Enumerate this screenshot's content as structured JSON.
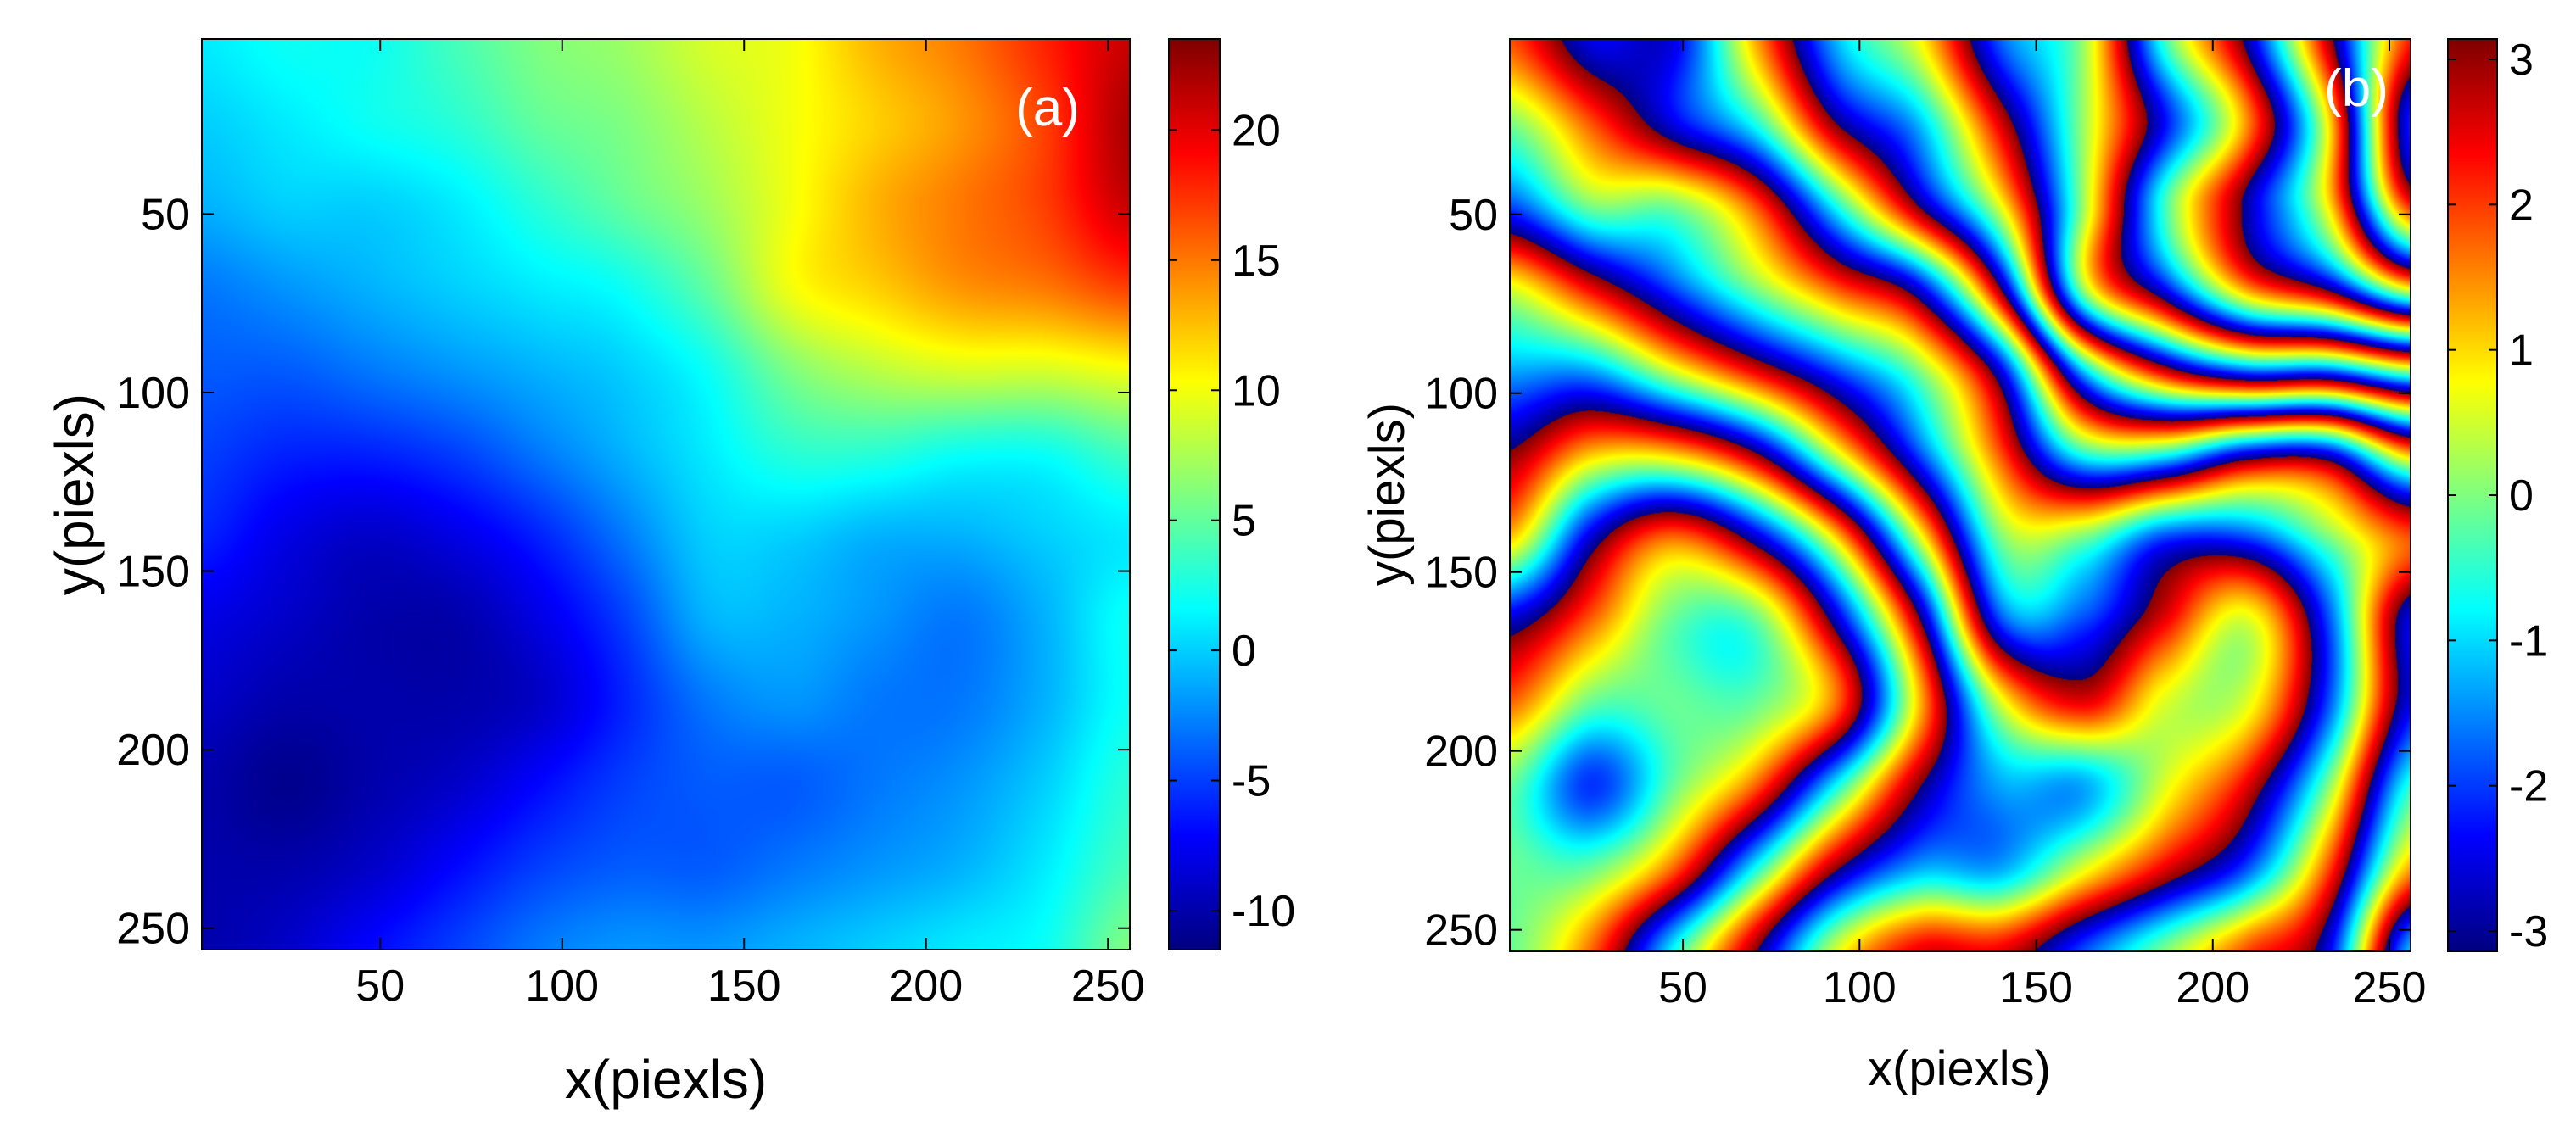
{
  "chart_data": [
    {
      "type": "heatmap",
      "panel_label": "(a)",
      "xlabel": "x(piexls)",
      "ylabel": "y(piexls)",
      "xlim": [
        1,
        256
      ],
      "ylim": [
        1,
        256
      ],
      "y_inverted": true,
      "xticks": [
        "50",
        "100",
        "150",
        "200",
        "250"
      ],
      "yticks": [
        "50",
        "100",
        "150",
        "200",
        "250"
      ],
      "colormap": "jet",
      "color_range": [
        -11.5,
        23.5
      ],
      "colorbar_ticks": [
        "-10",
        "-5",
        "0",
        "5",
        "10",
        "15",
        "20"
      ],
      "grid": false,
      "grid_values": [
        [
          1,
          2,
          2,
          4,
          6,
          7,
          9,
          10,
          13,
          15,
          18,
          21
        ],
        [
          0,
          1,
          2,
          3,
          5,
          6,
          8,
          10,
          12,
          14,
          17,
          22
        ],
        [
          -1,
          0,
          0,
          1,
          3,
          5,
          7,
          10,
          13,
          15,
          17,
          21
        ],
        [
          -3,
          -2,
          -1,
          0,
          1,
          2,
          5,
          10,
          12,
          14,
          15,
          17
        ],
        [
          -4,
          -4,
          -3,
          -2,
          -1,
          0,
          2,
          6,
          8,
          9,
          9,
          10
        ],
        [
          -5,
          -6,
          -6,
          -5,
          -3,
          -1,
          1,
          3,
          3,
          2,
          2,
          4
        ],
        [
          -6,
          -8,
          -9,
          -8,
          -6,
          -3,
          0,
          0,
          -1,
          -1,
          0,
          1
        ],
        [
          -8,
          -9,
          -10,
          -10,
          -8,
          -5,
          -1,
          -1,
          -2,
          -3,
          -1,
          2
        ],
        [
          -9,
          -10,
          -10,
          -10,
          -9,
          -6,
          -3,
          -2,
          -3,
          -3,
          -1,
          2
        ],
        [
          -10,
          -11,
          -10,
          -9,
          -7,
          -5,
          -4,
          -4,
          -3,
          -2,
          0,
          3
        ],
        [
          -10,
          -10,
          -9,
          -7,
          -5,
          -4,
          -4,
          -3,
          -2,
          -1,
          1,
          4
        ],
        [
          -10,
          -9,
          -7,
          -5,
          -3,
          -2,
          -2,
          -1,
          0,
          1,
          2,
          6
        ]
      ]
    },
    {
      "type": "heatmap",
      "panel_label": "(b)",
      "xlabel": "x(piexls)",
      "ylabel": "y(piexls)",
      "xlim": [
        1,
        256
      ],
      "ylim": [
        1,
        256
      ],
      "y_inverted": true,
      "xticks": [
        "50",
        "100",
        "150",
        "200",
        "250"
      ],
      "yticks": [
        "50",
        "100",
        "150",
        "200",
        "250"
      ],
      "colormap": "jet",
      "color_range": [
        -3.14,
        3.14
      ],
      "colorbar_ticks": [
        "-3",
        "-2",
        "-1",
        "0",
        "1",
        "2",
        "3"
      ],
      "grid": false,
      "wrapped_phase": true,
      "phase_source": "panel (a) values, wrapped into [-pi, pi]"
    }
  ]
}
